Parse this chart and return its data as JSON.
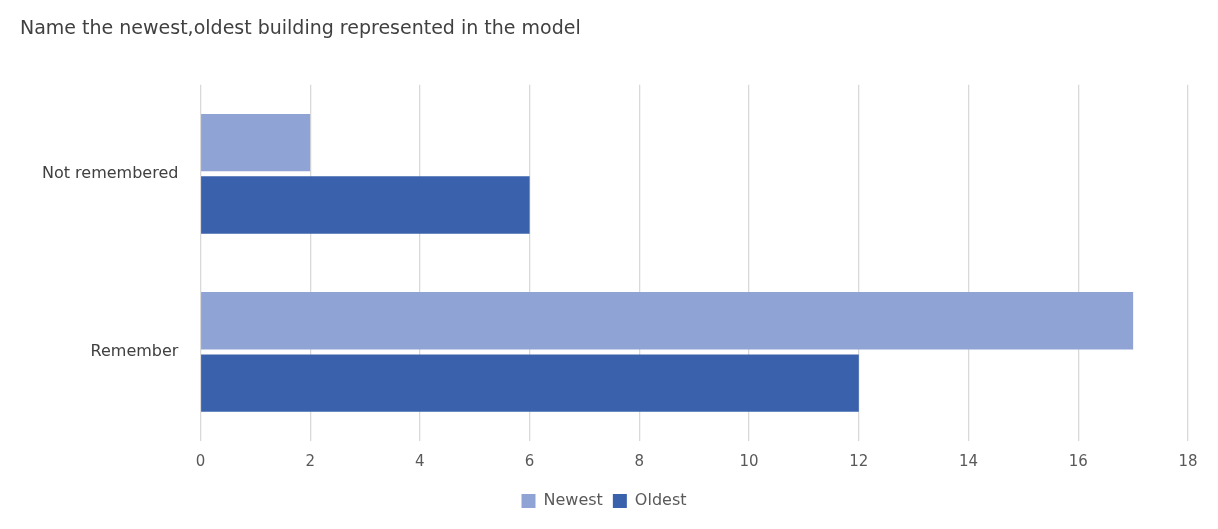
{
  "chart_data": {
    "type": "bar",
    "orientation": "horizontal",
    "title": "Name the newest,oldest building represented in the model",
    "categories": [
      "Not remembered",
      "Remember"
    ],
    "series": [
      {
        "name": "Newest",
        "color": "#8fa3d4",
        "values": [
          2,
          17
        ]
      },
      {
        "name": "Oldest",
        "color": "#3a62ac",
        "values": [
          6,
          12
        ]
      }
    ],
    "xlim": [
      0,
      18
    ],
    "xticks": [
      0,
      2,
      4,
      6,
      8,
      10,
      12,
      14,
      16,
      18
    ],
    "grid": "x",
    "legend": "bottom"
  }
}
